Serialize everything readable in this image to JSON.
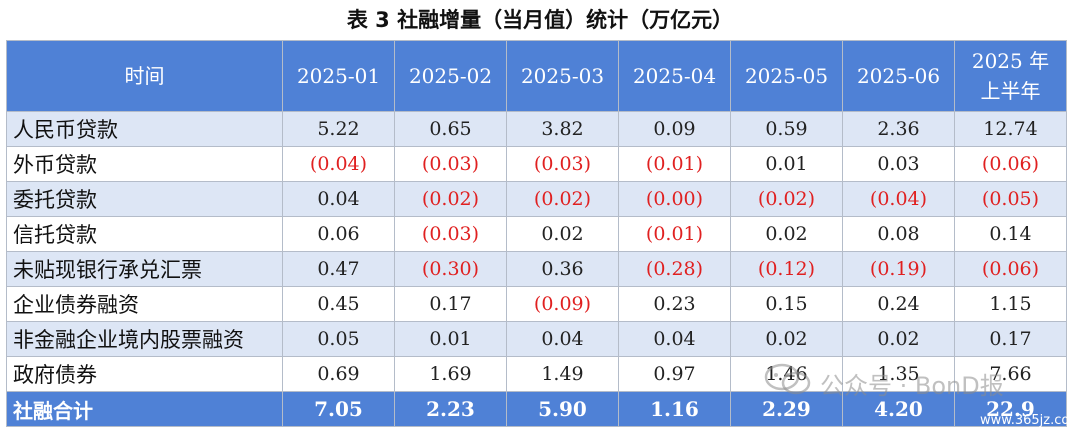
{
  "title": "表 3 社融增量（当月值）统计（万亿元）",
  "header": {
    "col0": "时间",
    "months": [
      "2025-01",
      "2025-02",
      "2025-03",
      "2025-04",
      "2025-05",
      "2025-06"
    ],
    "half_line1": "2025 年",
    "half_line2": "上半年"
  },
  "rows": [
    {
      "label": "人民币贷款",
      "values": [
        "5.22",
        "0.65",
        "3.82",
        "0.09",
        "0.59",
        "2.36",
        "12.74"
      ]
    },
    {
      "label": "外币贷款",
      "values": [
        "(0.04)",
        "(0.03)",
        "(0.03)",
        "(0.01)",
        "0.01",
        "0.03",
        "(0.06)"
      ]
    },
    {
      "label": "委托贷款",
      "values": [
        "0.04",
        "(0.02)",
        "(0.02)",
        "(0.00)",
        "(0.02)",
        "(0.04)",
        "(0.05)"
      ]
    },
    {
      "label": "信托贷款",
      "values": [
        "0.06",
        "(0.03)",
        "0.02",
        "(0.01)",
        "0.02",
        "0.08",
        "0.14"
      ]
    },
    {
      "label": "未贴现银行承兑汇票",
      "values": [
        "0.47",
        "(0.30)",
        "0.36",
        "(0.28)",
        "(0.12)",
        "(0.19)",
        "(0.06)"
      ]
    },
    {
      "label": "企业债券融资",
      "values": [
        "0.45",
        "0.17",
        "(0.09)",
        "0.23",
        "0.15",
        "0.24",
        "1.15"
      ]
    },
    {
      "label": "非金融企业境内股票融资",
      "values": [
        "0.05",
        "0.01",
        "0.04",
        "0.04",
        "0.02",
        "0.02",
        "0.17"
      ]
    },
    {
      "label": "政府债券",
      "values": [
        "0.69",
        "1.69",
        "1.49",
        "0.97",
        "1.46",
        "1.35",
        "7.66"
      ]
    }
  ],
  "total": {
    "label": "社融合计",
    "values": [
      "7.05",
      "2.23",
      "5.90",
      "1.16",
      "2.29",
      "4.20",
      "22.9"
    ]
  },
  "watermark": {
    "text": "公众号 · BonD报",
    "url": "www.365jz.com"
  },
  "colors": {
    "header_bg": "#4f81d6",
    "stripe": "#dde6f5",
    "negative": "#e02020"
  }
}
